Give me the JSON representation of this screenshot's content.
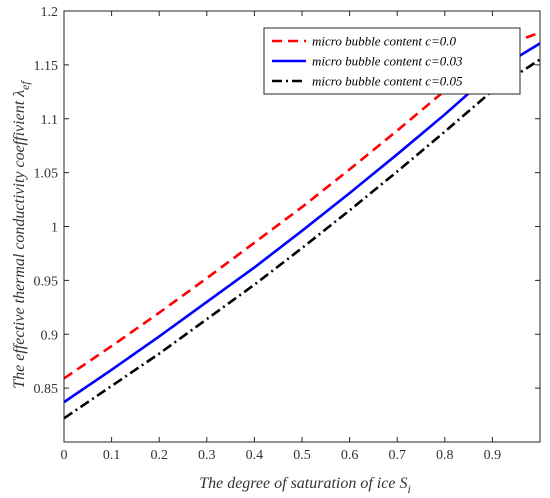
{
  "chart_data": {
    "type": "line",
    "xlabel": "The degree of saturation of ice S",
    "xlabel_sub": "i",
    "ylabel": "The effective thermal conductivity coeffivient λ",
    "ylabel_sub": "ef",
    "xlim": [
      0,
      1
    ],
    "ylim": [
      0.8,
      1.2
    ],
    "x_ticks": [
      "0",
      "0.1",
      "0.2",
      "0.3",
      "0.4",
      "0.5",
      "0.6",
      "0.7",
      "0.8",
      "0.9"
    ],
    "y_ticks": [
      "0.85",
      "0.9",
      "0.95",
      "1",
      "1.05",
      "1.1",
      "1.15",
      "1.2"
    ],
    "grid": false,
    "legend_position": "top-right",
    "x": [
      0,
      0.1,
      0.2,
      0.3,
      0.4,
      0.5,
      0.6,
      0.7,
      0.8,
      0.9,
      1.0
    ],
    "series": [
      {
        "name": "micro bubble  content c=0.0",
        "color": "#ff0000",
        "dash": "dashed",
        "values": [
          0.859,
          0.889,
          0.92,
          0.952,
          0.985,
          1.018,
          1.053,
          1.089,
          1.126,
          1.164,
          1.18
        ]
      },
      {
        "name": "micro bubble content c=0.03",
        "color": "#0000ff",
        "dash": "solid",
        "values": [
          0.837,
          0.867,
          0.898,
          0.93,
          0.962,
          0.996,
          1.031,
          1.067,
          1.104,
          1.143,
          1.17
        ]
      },
      {
        "name": "micro bubble content c=0.05",
        "color": "#000000",
        "dash": "dashdot",
        "values": [
          0.822,
          0.852,
          0.882,
          0.914,
          0.946,
          0.98,
          1.015,
          1.051,
          1.088,
          1.126,
          1.155
        ]
      }
    ]
  }
}
